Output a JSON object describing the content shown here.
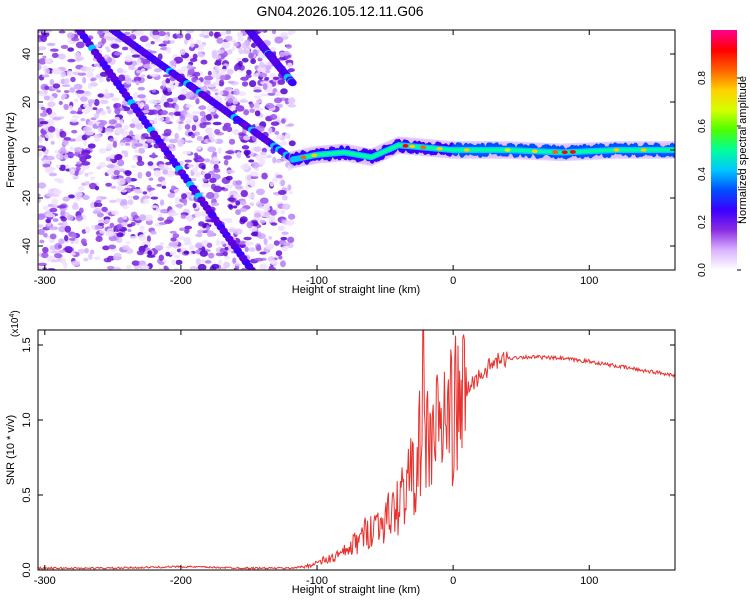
{
  "title": "GN04.2026.105.12.11.G06",
  "chart_data": [
    {
      "type": "heatmap",
      "title": "GN04.2026.105.12.11.G06",
      "xlabel": "Height of straight line (km)",
      "ylabel": "Frequency (Hz)",
      "xlim": [
        -305,
        163
      ],
      "ylim": [
        -50,
        50
      ],
      "xticks": [
        -300,
        -200,
        -100,
        0,
        100
      ],
      "xtick_labels": [
        "-300",
        "-200",
        "-100",
        "0",
        "100"
      ],
      "yticks": [
        -40,
        -20,
        0,
        20,
        40
      ],
      "ytick_labels": [
        "-40",
        "-20",
        "0",
        "20",
        "40"
      ],
      "colorbar": {
        "label": "Normalized spectral amplitude",
        "range": [
          0.0,
          1.0
        ],
        "ticks": [
          "0.0",
          "0.2",
          "0.4",
          "0.6",
          "0.8"
        ],
        "colors": [
          "#ffffff",
          "#d9b3ff",
          "#8a2be2",
          "#3b00ff",
          "#0050ff",
          "#00c8ff",
          "#00ff9a",
          "#4dff00",
          "#d6ff00",
          "#ffd000",
          "#ff6000",
          "#ff0000",
          "#ff0090"
        ]
      },
      "carrier_track": {
        "x": [
          -118,
          -100,
          -80,
          -60,
          -40,
          -20,
          0,
          40,
          80,
          120,
          163
        ],
        "y": [
          -4,
          -2,
          -1,
          -3,
          2,
          1,
          0,
          0,
          -1,
          0,
          0
        ]
      },
      "streaks": [
        {
          "x": [
            -250,
            -115
          ],
          "y": [
            50,
            -5
          ]
        },
        {
          "x": [
            -150,
            -118
          ],
          "y": [
            50,
            28
          ]
        },
        {
          "x": [
            -300,
            -148
          ],
          "y": [
            70,
            -50
          ]
        }
      ]
    },
    {
      "type": "line",
      "xlabel": "Height of straight line (km)",
      "ylabel": "SNR (10 * v/v)",
      "scale_label": "(x10",
      "scale_exponent": "4",
      "scale_close": ")",
      "xlim": [
        -305,
        163
      ],
      "ylim": [
        0.0,
        1.6
      ],
      "xticks": [
        -300,
        -200,
        -100,
        0,
        100
      ],
      "xtick_labels": [
        "-300",
        "-200",
        "-100",
        "0",
        "100"
      ],
      "yticks": [
        0.0,
        0.5,
        1.0,
        1.5
      ],
      "ytick_labels": [
        "0.0",
        "0.5",
        "1.0",
        "1.5"
      ],
      "series": [
        {
          "name": "SNR",
          "color": "#e8322e",
          "x": [
            -305,
            -250,
            -200,
            -150,
            -120,
            -110,
            -100,
            -90,
            -80,
            -70,
            -60,
            -50,
            -40,
            -35,
            -30,
            -25,
            -20,
            -15,
            -10,
            -5,
            0,
            10,
            20,
            30,
            40,
            50,
            60,
            80,
            100,
            120,
            140,
            163
          ],
          "y": [
            0.01,
            0.01,
            0.02,
            0.01,
            0.01,
            0.02,
            0.05,
            0.08,
            0.12,
            0.2,
            0.3,
            0.35,
            0.45,
            0.6,
            0.65,
            0.85,
            0.9,
            0.95,
            1.0,
            1.05,
            1.1,
            1.2,
            1.3,
            1.38,
            1.41,
            1.42,
            1.42,
            1.41,
            1.39,
            1.36,
            1.33,
            1.3
          ]
        }
      ]
    }
  ]
}
